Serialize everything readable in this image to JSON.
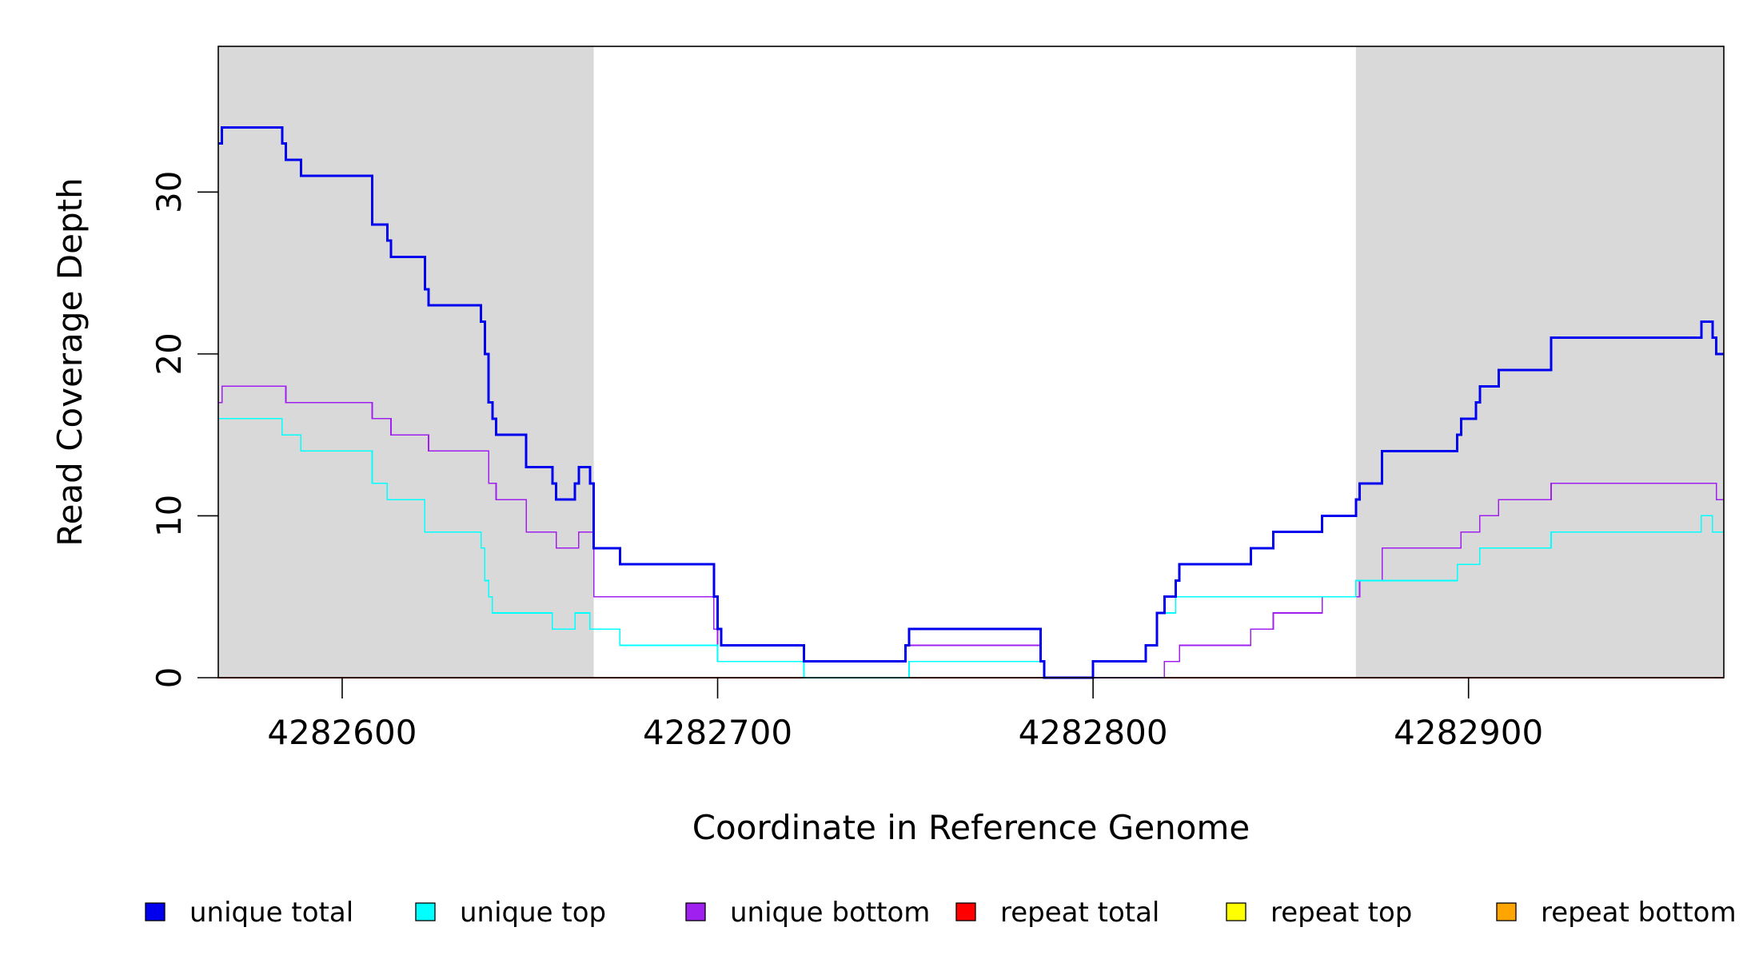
{
  "chart_data": {
    "type": "line",
    "title": "",
    "xlabel": "Coordinate in Reference Genome",
    "ylabel": "Read Coverage Depth",
    "xlim": [
      4282567,
      4282968
    ],
    "ylim": [
      0,
      39
    ],
    "x_ticks": [
      4282600,
      4282700,
      4282800,
      4282900
    ],
    "x_tick_labels": [
      "4282600",
      "4282700",
      "4282800",
      "4282900"
    ],
    "y_ticks": [
      0,
      10,
      20,
      30
    ],
    "y_tick_labels": [
      "0",
      "10",
      "20",
      "30"
    ],
    "shaded_regions": [
      [
        4282567,
        4282667
      ],
      [
        4282870,
        4282968
      ]
    ],
    "shade_color": "#d9d9d9",
    "legend_position": "bottom",
    "legend": [
      {
        "label": "unique total",
        "color": "#0000ee"
      },
      {
        "label": "unique top",
        "color": "#00ffff"
      },
      {
        "label": "unique bottom",
        "color": "#a020f0"
      },
      {
        "label": "repeat total",
        "color": "#ff0000"
      },
      {
        "label": "repeat top",
        "color": "#ffff00"
      },
      {
        "label": "repeat bottom",
        "color": "#ffa500"
      }
    ],
    "series": [
      {
        "name": "unique total",
        "color": "#0000ee",
        "width": 3,
        "points": [
          [
            4282567,
            33
          ],
          [
            4282568,
            34
          ],
          [
            4282584,
            33
          ],
          [
            4282585,
            32
          ],
          [
            4282589,
            31
          ],
          [
            4282608,
            28
          ],
          [
            4282612,
            27
          ],
          [
            4282613,
            26
          ],
          [
            4282622,
            24
          ],
          [
            4282623,
            23
          ],
          [
            4282637,
            22
          ],
          [
            4282638,
            20
          ],
          [
            4282639,
            17
          ],
          [
            4282640,
            16
          ],
          [
            4282641,
            15
          ],
          [
            4282649,
            13
          ],
          [
            4282656,
            12
          ],
          [
            4282657,
            11
          ],
          [
            4282662,
            12
          ],
          [
            4282663,
            13
          ],
          [
            4282666,
            12
          ],
          [
            4282667,
            8
          ],
          [
            4282674,
            7
          ],
          [
            4282699,
            5
          ],
          [
            4282700,
            3
          ],
          [
            4282701,
            2
          ],
          [
            4282723,
            1
          ],
          [
            4282750,
            2
          ],
          [
            4282751,
            3
          ],
          [
            4282786,
            1
          ],
          [
            4282787,
            0
          ],
          [
            4282800,
            1
          ],
          [
            4282814,
            2
          ],
          [
            4282817,
            4
          ],
          [
            4282819,
            5
          ],
          [
            4282822,
            6
          ],
          [
            4282823,
            7
          ],
          [
            4282842,
            8
          ],
          [
            4282848,
            9
          ],
          [
            4282861,
            10
          ],
          [
            4282870,
            11
          ],
          [
            4282871,
            12
          ],
          [
            4282877,
            14
          ],
          [
            4282897,
            15
          ],
          [
            4282898,
            16
          ],
          [
            4282902,
            17
          ],
          [
            4282903,
            18
          ],
          [
            4282908,
            19
          ],
          [
            4282922,
            21
          ],
          [
            4282962,
            22
          ],
          [
            4282965,
            21
          ],
          [
            4282966,
            20
          ],
          [
            4282968,
            20
          ]
        ]
      },
      {
        "name": "unique top",
        "color": "#00ffff",
        "width": 1.6,
        "points": [
          [
            4282567,
            16
          ],
          [
            4282584,
            15
          ],
          [
            4282589,
            14
          ],
          [
            4282608,
            12
          ],
          [
            4282612,
            11
          ],
          [
            4282622,
            9
          ],
          [
            4282637,
            8
          ],
          [
            4282638,
            6
          ],
          [
            4282639,
            5
          ],
          [
            4282640,
            4
          ],
          [
            4282656,
            3
          ],
          [
            4282662,
            4
          ],
          [
            4282666,
            3
          ],
          [
            4282674,
            2
          ],
          [
            4282700,
            1
          ],
          [
            4282723,
            0
          ],
          [
            4282751,
            1
          ],
          [
            4282787,
            0
          ],
          [
            4282800,
            1
          ],
          [
            4282814,
            2
          ],
          [
            4282817,
            4
          ],
          [
            4282822,
            5
          ],
          [
            4282870,
            6
          ],
          [
            4282897,
            7
          ],
          [
            4282903,
            8
          ],
          [
            4282922,
            9
          ],
          [
            4282962,
            10
          ],
          [
            4282965,
            9
          ],
          [
            4282968,
            9
          ]
        ]
      },
      {
        "name": "unique bottom",
        "color": "#a020f0",
        "width": 1.6,
        "points": [
          [
            4282567,
            17
          ],
          [
            4282568,
            18
          ],
          [
            4282585,
            17
          ],
          [
            4282608,
            16
          ],
          [
            4282613,
            15
          ],
          [
            4282623,
            14
          ],
          [
            4282639,
            12
          ],
          [
            4282641,
            11
          ],
          [
            4282649,
            9
          ],
          [
            4282657,
            8
          ],
          [
            4282663,
            9
          ],
          [
            4282667,
            5
          ],
          [
            4282699,
            3
          ],
          [
            4282700,
            1
          ],
          [
            4282723,
            1
          ],
          [
            4282750,
            2
          ],
          [
            4282786,
            1
          ],
          [
            4282787,
            0
          ],
          [
            4282819,
            1
          ],
          [
            4282823,
            2
          ],
          [
            4282842,
            3
          ],
          [
            4282848,
            4
          ],
          [
            4282861,
            5
          ],
          [
            4282871,
            6
          ],
          [
            4282877,
            8
          ],
          [
            4282898,
            9
          ],
          [
            4282903,
            10
          ],
          [
            4282908,
            11
          ],
          [
            4282922,
            12
          ],
          [
            4282966,
            11
          ],
          [
            4282968,
            11
          ]
        ]
      },
      {
        "name": "repeat total",
        "color": "#ff0000",
        "width": 1.6,
        "points": [
          [
            4282567,
            0
          ],
          [
            4282968,
            0
          ]
        ]
      },
      {
        "name": "repeat top",
        "color": "#ffff00",
        "width": 1.6,
        "points": [
          [
            4282567,
            0
          ],
          [
            4282968,
            0
          ]
        ]
      },
      {
        "name": "repeat bottom",
        "color": "#ffa500",
        "width": 2.2,
        "points": [
          [
            4282567,
            0
          ],
          [
            4282968,
            0
          ]
        ]
      }
    ]
  }
}
